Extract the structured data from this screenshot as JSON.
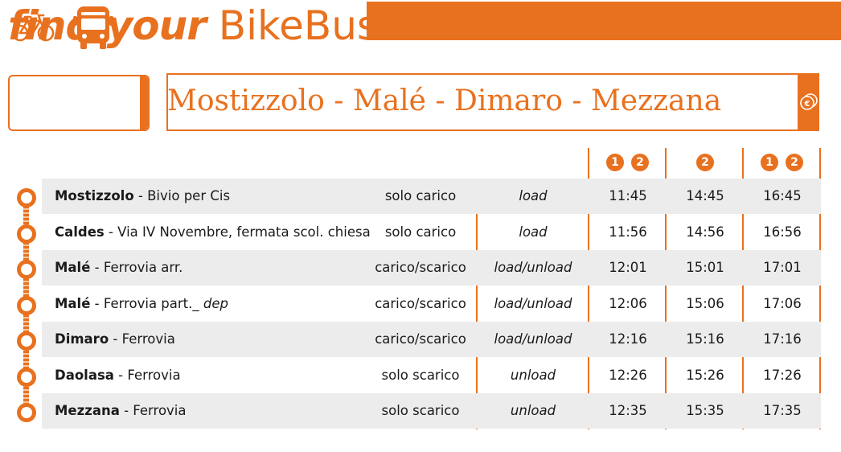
{
  "brand": {
    "bold": "find your",
    "light": "BikeBus"
  },
  "route": {
    "title": "Mostizzolo - Malé - Dimaro - Mezzana"
  },
  "icons": {
    "bike": "bicycle-icon",
    "bus": "bus-icon",
    "fare": "euro-coins-icon"
  },
  "colors": {
    "accent": "#e8711f",
    "row_shade": "#ececec"
  },
  "table": {
    "column_badges": [
      [
        "1",
        "2"
      ],
      [
        "2"
      ],
      [
        "1",
        "2"
      ]
    ],
    "rows": [
      {
        "stop": "Mostizzolo",
        "detail": " - Bivio per Cis",
        "it": "solo carico",
        "en": "load",
        "times": [
          "11:45",
          "14:45",
          "16:45"
        ]
      },
      {
        "stop": "Caldes",
        "detail": " - Via IV Novembre, fermata scol. chiesa",
        "it": "solo carico",
        "en": "load",
        "times": [
          "11:56",
          "14:56",
          "16:56"
        ]
      },
      {
        "stop": "Malé",
        "detail": " - Ferrovia arr.",
        "it": "carico/scarico",
        "en": "load/unload",
        "times": [
          "12:01",
          "15:01",
          "17:01"
        ]
      },
      {
        "stop": "Malé",
        "detail": " - Ferrovia part._",
        "detail_it": "dep",
        "it": "carico/scarico",
        "en": "load/unload",
        "times": [
          "12:06",
          "15:06",
          "17:06"
        ]
      },
      {
        "stop": "Dimaro",
        "detail": " - Ferrovia",
        "it": "carico/scarico",
        "en": "load/unload",
        "times": [
          "12:16",
          "15:16",
          "17:16"
        ]
      },
      {
        "stop": "Daolasa",
        "detail": " - Ferrovia",
        "it": "solo scarico",
        "en": "unload",
        "times": [
          "12:26",
          "15:26",
          "17:26"
        ]
      },
      {
        "stop": "Mezzana",
        "detail": " - Ferrovia",
        "it": "solo scarico",
        "en": "unload",
        "times": [
          "12:35",
          "15:35",
          "17:35"
        ]
      }
    ]
  }
}
